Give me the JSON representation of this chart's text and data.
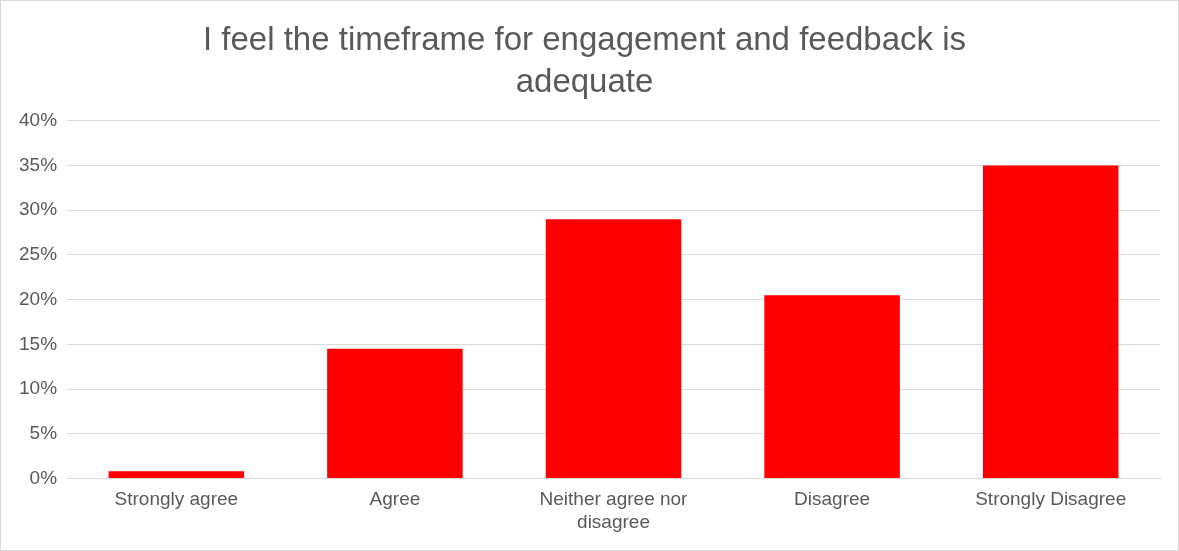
{
  "chart_data": {
    "type": "bar",
    "title": "I feel the timeframe for engagement and feedback is adequate",
    "categories": [
      "Strongly agree",
      "Agree",
      "Neither agree nor disagree",
      "Disagree",
      "Strongly Disagree"
    ],
    "values": [
      0.8,
      14.5,
      29,
      20.5,
      35
    ],
    "color": "#ff0000",
    "ylim": [
      0,
      40
    ],
    "yticks": [
      {
        "value": 0,
        "label": "0%"
      },
      {
        "value": 5,
        "label": "5%"
      },
      {
        "value": 10,
        "label": "10%"
      },
      {
        "value": 15,
        "label": "15%"
      },
      {
        "value": 20,
        "label": "20%"
      },
      {
        "value": 25,
        "label": "25%"
      },
      {
        "value": 30,
        "label": "30%"
      },
      {
        "value": 35,
        "label": "35%"
      },
      {
        "value": 40,
        "label": "40%"
      }
    ],
    "grid": "y",
    "legend": false
  }
}
